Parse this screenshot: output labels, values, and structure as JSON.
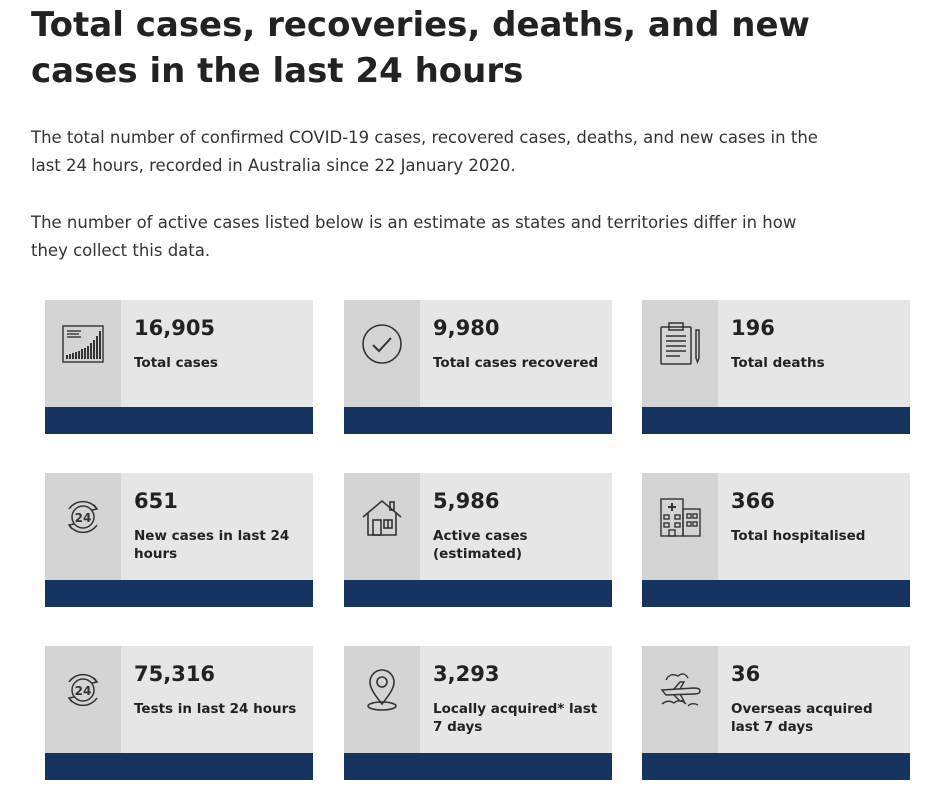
{
  "title": "Total cases, recoveries, deaths, and new cases in the last 24 hours",
  "intro_1": "The total number of confirmed COVID-19 cases, recovered cases, deaths, and new cases in the last 24 hours, recorded in Australia since 22 January 2020.",
  "intro_2": "The number of active cases listed below is an estimate as states and territories differ in how they collect this data.",
  "cards": [
    {
      "value": "16,905",
      "label": "Total cases",
      "icon": "chart-icon"
    },
    {
      "value": "9,980",
      "label": "Total cases recovered",
      "icon": "checkmark-circle-icon"
    },
    {
      "value": "196",
      "label": "Total deaths",
      "icon": "clipboard-icon"
    },
    {
      "value": "651",
      "label": "New cases in last 24 hours",
      "icon": "24-hours-icon"
    },
    {
      "value": "5,986",
      "label": "Active cases (estimated)",
      "icon": "house-icon"
    },
    {
      "value": "366",
      "label": "Total hospitalised",
      "icon": "hospital-icon"
    },
    {
      "value": "75,316",
      "label": "Tests in last 24 hours",
      "icon": "24-hours-icon"
    },
    {
      "value": "3,293",
      "label": "Locally acquired* last 7 days",
      "icon": "location-pin-icon"
    },
    {
      "value": "36",
      "label": "Overseas acquired last 7 days",
      "icon": "airplane-icon"
    }
  ],
  "colors": {
    "card_bg": "#e6e6e6",
    "icon_bg": "#d4d4d4",
    "bar": "#17335f"
  }
}
